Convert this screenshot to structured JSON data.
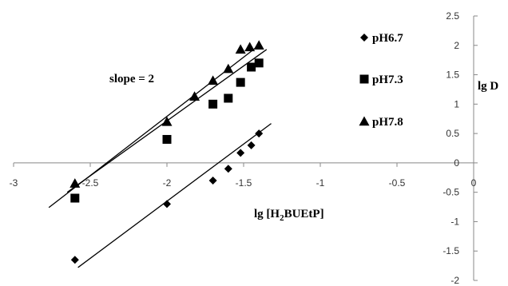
{
  "chart_data": {
    "type": "scatter",
    "title": "",
    "xlabel": {
      "main": "lg [H",
      "sub": "2",
      "rest": "BUEtP]"
    },
    "ylabel": "lg D",
    "annotation": "slope = 2",
    "xlim": [
      -3,
      0
    ],
    "ylim": [
      -2,
      2.5
    ],
    "x_ticks": [
      -3,
      -2.5,
      -2,
      -1.5,
      -1,
      -0.5,
      0
    ],
    "y_ticks": [
      -2,
      -1.5,
      -1,
      -0.5,
      0,
      0.5,
      1,
      1.5,
      2,
      2.5
    ],
    "grid": false,
    "legend_position": "right",
    "series": [
      {
        "name": "pH6.7",
        "marker": "diamond",
        "x": [
          -2.6,
          -2.0,
          -1.7,
          -1.6,
          -1.52,
          -1.45,
          -1.4
        ],
        "y": [
          -1.65,
          -0.7,
          -0.3,
          -0.1,
          0.17,
          0.3,
          0.5
        ],
        "fit": {
          "x": [
            -2.58,
            -1.32
          ],
          "y": [
            -1.78,
            0.67
          ]
        }
      },
      {
        "name": "pH7.3",
        "marker": "square",
        "x": [
          -2.6,
          -2.0,
          -1.7,
          -1.6,
          -1.52,
          -1.45,
          -1.4
        ],
        "y": [
          -0.6,
          0.4,
          1.0,
          1.1,
          1.37,
          1.63,
          1.7
        ],
        "fit": {
          "x": [
            -2.65,
            -1.35
          ],
          "y": [
            -0.5,
            1.93
          ]
        }
      },
      {
        "name": "pH7.8",
        "marker": "triangle",
        "x": [
          -2.6,
          -2.0,
          -1.82,
          -1.7,
          -1.6,
          -1.52,
          -1.46,
          -1.4
        ],
        "y": [
          -0.35,
          0.7,
          1.13,
          1.4,
          1.6,
          1.93,
          1.97,
          2.0
        ],
        "fit": {
          "x": [
            -2.77,
            -1.4
          ],
          "y": [
            -0.76,
            2.0
          ]
        }
      }
    ],
    "colors": {
      "marker": "#000000",
      "axis": "#888888",
      "text": "#333333"
    }
  }
}
